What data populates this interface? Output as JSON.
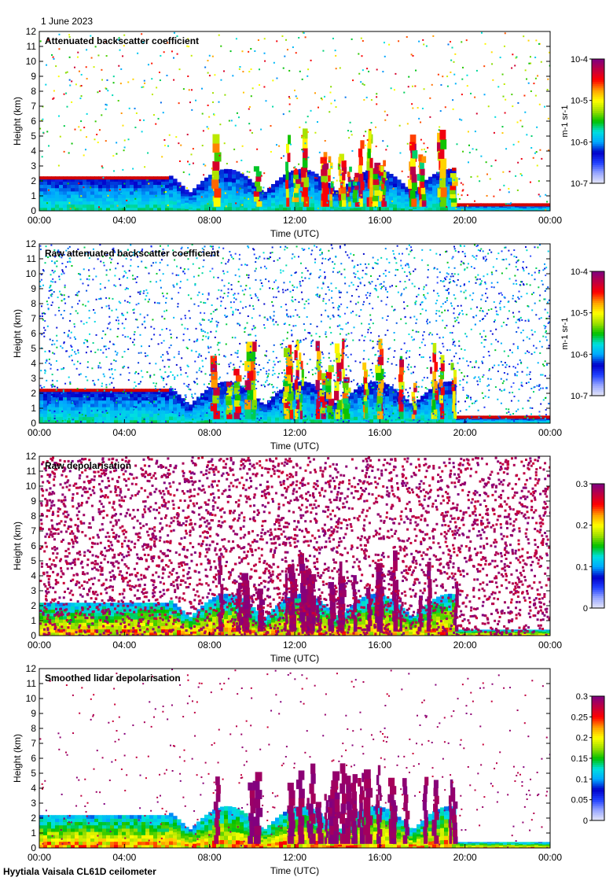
{
  "header": {
    "date": "1 June 2023"
  },
  "footer": {
    "instrument": "Hyytiala Vaisala CL61D ceilometer"
  },
  "colors": {
    "colormap": [
      "#e8e8f8",
      "#9aa8ff",
      "#2040ff",
      "#0000c8",
      "#00a8ff",
      "#00e0e0",
      "#00c000",
      "#a0e000",
      "#ffff00",
      "#ffa000",
      "#ff0000",
      "#c00040",
      "#800080"
    ]
  },
  "chart_data": [
    {
      "type": "heatmap",
      "title": "Attenuated backscatter coefficient",
      "xlabel": "Time (UTC)",
      "ylabel": "Height (km)",
      "x_ticks": [
        "00:00",
        "04:00",
        "08:00",
        "12:00",
        "16:00",
        "20:00",
        "00:00"
      ],
      "y_ticks": [
        "0",
        "1",
        "2",
        "3",
        "4",
        "5",
        "6",
        "7",
        "8",
        "9",
        "10",
        "11",
        "12"
      ],
      "ylim": [
        0,
        12
      ],
      "colorbar": {
        "ticks": [
          "10-7",
          "10-6",
          "10-5",
          "10-4"
        ],
        "label": "m-1 sr-1",
        "scale": "log",
        "range": [
          1e-07,
          0.0001
        ]
      }
    },
    {
      "type": "heatmap",
      "title": "Raw attenuated backscatter coefficient",
      "xlabel": "Time (UTC)",
      "ylabel": "Height (km)",
      "x_ticks": [
        "00:00",
        "04:00",
        "08:00",
        "12:00",
        "16:00",
        "20:00",
        "00:00"
      ],
      "y_ticks": [
        "0",
        "1",
        "2",
        "3",
        "4",
        "5",
        "6",
        "7",
        "8",
        "9",
        "10",
        "11",
        "12"
      ],
      "ylim": [
        0,
        12
      ],
      "colorbar": {
        "ticks": [
          "10-7",
          "10-6",
          "10-5",
          "10-4"
        ],
        "label": "m-1 sr-1",
        "scale": "log",
        "range": [
          1e-07,
          0.0001
        ]
      }
    },
    {
      "type": "heatmap",
      "title": "Raw depolarisation",
      "xlabel": "Time (UTC)",
      "ylabel": "Height (km)",
      "x_ticks": [
        "00:00",
        "04:00",
        "08:00",
        "12:00",
        "16:00",
        "20:00",
        "00:00"
      ],
      "y_ticks": [
        "0",
        "1",
        "2",
        "3",
        "4",
        "5",
        "6",
        "7",
        "8",
        "9",
        "10",
        "11",
        "12"
      ],
      "ylim": [
        0,
        12
      ],
      "colorbar": {
        "ticks": [
          "0",
          "0.1",
          "0.2",
          "0.3"
        ],
        "label": "",
        "scale": "linear",
        "range": [
          0,
          0.3
        ]
      }
    },
    {
      "type": "heatmap",
      "title": "Smoothed lidar depolarisation",
      "xlabel": "Time (UTC)",
      "ylabel": "Height (km)",
      "x_ticks": [
        "00:00",
        "04:00",
        "08:00",
        "12:00",
        "16:00",
        "20:00",
        "00:00"
      ],
      "y_ticks": [
        "0",
        "1",
        "2",
        "3",
        "4",
        "5",
        "6",
        "7",
        "8",
        "9",
        "10",
        "11",
        "12"
      ],
      "ylim": [
        0,
        12
      ],
      "colorbar": {
        "ticks": [
          "0",
          "0.05",
          "0.1",
          "0.15",
          "0.2",
          "0.25",
          "0.3"
        ],
        "label": "",
        "scale": "linear",
        "range": [
          0,
          0.3
        ]
      }
    }
  ]
}
